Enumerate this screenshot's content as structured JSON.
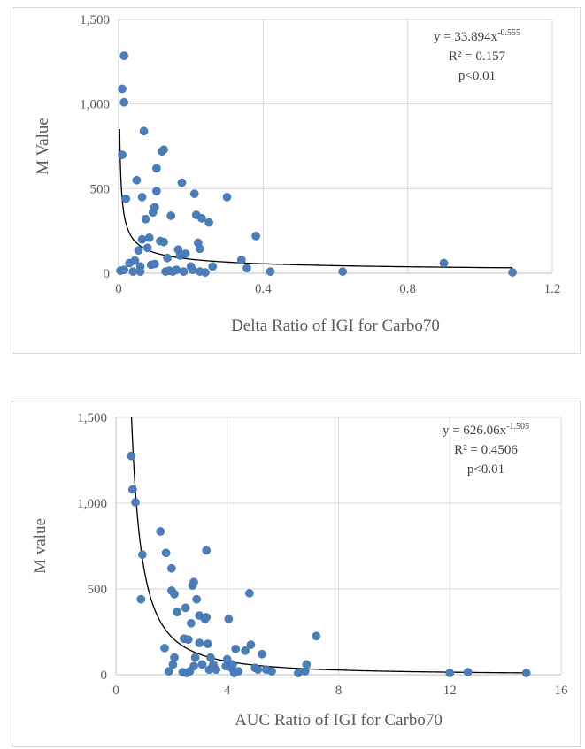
{
  "chart_data": [
    {
      "type": "scatter",
      "xlabel": "Delta Ratio of IGI for Carbo70",
      "ylabel": "M Value",
      "xlim": [
        0,
        1.2
      ],
      "ylim": [
        0,
        1500
      ],
      "xticks": [
        "0",
        "0.4",
        "0.8",
        "1.2"
      ],
      "xtick_values": [
        0,
        0.4,
        0.8,
        1.2
      ],
      "yticks": [
        "0",
        "500",
        "1,000",
        "1,500"
      ],
      "ytick_values": [
        0,
        500,
        1000,
        1500
      ],
      "grid": true,
      "equation": {
        "base": "y = 33.894x",
        "exponent": "-0.555",
        "r2": "R² = 0.157",
        "p": "p<0.01"
      },
      "trendline": {
        "type": "power",
        "a": 33.894,
        "b": -0.555
      },
      "points": [
        [
          0.01,
          700
        ],
        [
          0.01,
          1090
        ],
        [
          0.015,
          1285
        ],
        [
          0.015,
          1010
        ],
        [
          0.02,
          440
        ],
        [
          0.005,
          15
        ],
        [
          0.015,
          20
        ],
        [
          0.03,
          60
        ],
        [
          0.04,
          10
        ],
        [
          0.045,
          75
        ],
        [
          0.05,
          550
        ],
        [
          0.055,
          135
        ],
        [
          0.06,
          40
        ],
        [
          0.06,
          10
        ],
        [
          0.065,
          200
        ],
        [
          0.065,
          450
        ],
        [
          0.07,
          840
        ],
        [
          0.075,
          320
        ],
        [
          0.08,
          150
        ],
        [
          0.085,
          210
        ],
        [
          0.09,
          50
        ],
        [
          0.095,
          360
        ],
        [
          0.1,
          390
        ],
        [
          0.1,
          55
        ],
        [
          0.105,
          485
        ],
        [
          0.105,
          620
        ],
        [
          0.115,
          190
        ],
        [
          0.12,
          720
        ],
        [
          0.125,
          730
        ],
        [
          0.125,
          185
        ],
        [
          0.13,
          10
        ],
        [
          0.135,
          90
        ],
        [
          0.14,
          15
        ],
        [
          0.145,
          340
        ],
        [
          0.15,
          10
        ],
        [
          0.16,
          20
        ],
        [
          0.165,
          140
        ],
        [
          0.17,
          105
        ],
        [
          0.175,
          535
        ],
        [
          0.18,
          10
        ],
        [
          0.185,
          115
        ],
        [
          0.2,
          40
        ],
        [
          0.205,
          20
        ],
        [
          0.21,
          470
        ],
        [
          0.215,
          345
        ],
        [
          0.22,
          180
        ],
        [
          0.225,
          145
        ],
        [
          0.225,
          10
        ],
        [
          0.23,
          325
        ],
        [
          0.24,
          5
        ],
        [
          0.25,
          300
        ],
        [
          0.26,
          40
        ],
        [
          0.3,
          450
        ],
        [
          0.34,
          80
        ],
        [
          0.355,
          30
        ],
        [
          0.38,
          220
        ],
        [
          0.42,
          10
        ],
        [
          0.62,
          10
        ],
        [
          0.9,
          60
        ],
        [
          1.09,
          5
        ]
      ]
    },
    {
      "type": "scatter",
      "xlabel": "AUC Ratio of IGI for Carbo70",
      "ylabel": "M value",
      "xlim": [
        0,
        16
      ],
      "ylim": [
        0,
        1500
      ],
      "xticks": [
        "0",
        "4",
        "8",
        "12",
        "16"
      ],
      "xtick_values": [
        0,
        4,
        8,
        12,
        16
      ],
      "yticks": [
        "0",
        "500",
        "1,000",
        "1,500"
      ],
      "ytick_values": [
        0,
        500,
        1000,
        1500
      ],
      "grid": true,
      "equation": {
        "base": "y = 626.06x",
        "exponent": "-1.505",
        "r2": "R² = 0.4506",
        "p": "p<0.01"
      },
      "trendline": {
        "type": "power",
        "a": 626.06,
        "b": -1.505
      },
      "points": [
        [
          0.55,
          1275
        ],
        [
          0.6,
          1080
        ],
        [
          0.7,
          1005
        ],
        [
          0.9,
          440
        ],
        [
          0.95,
          700
        ],
        [
          1.6,
          835
        ],
        [
          1.75,
          155
        ],
        [
          1.8,
          710
        ],
        [
          1.9,
          20
        ],
        [
          2.0,
          620
        ],
        [
          2.0,
          490
        ],
        [
          2.05,
          60
        ],
        [
          2.1,
          100
        ],
        [
          2.1,
          470
        ],
        [
          2.2,
          365
        ],
        [
          2.4,
          15
        ],
        [
          2.45,
          210
        ],
        [
          2.5,
          390
        ],
        [
          2.55,
          10
        ],
        [
          2.6,
          205
        ],
        [
          2.65,
          20
        ],
        [
          2.7,
          300
        ],
        [
          2.75,
          520
        ],
        [
          2.8,
          540
        ],
        [
          2.8,
          50
        ],
        [
          2.85,
          100
        ],
        [
          2.9,
          440
        ],
        [
          3.0,
          345
        ],
        [
          3.0,
          185
        ],
        [
          3.1,
          60
        ],
        [
          3.2,
          325
        ],
        [
          3.25,
          725
        ],
        [
          3.25,
          335
        ],
        [
          3.3,
          180
        ],
        [
          3.35,
          30
        ],
        [
          3.4,
          100
        ],
        [
          3.5,
          60
        ],
        [
          3.6,
          30
        ],
        [
          3.95,
          50
        ],
        [
          4.0,
          90
        ],
        [
          4.05,
          325
        ],
        [
          4.15,
          40
        ],
        [
          4.2,
          60
        ],
        [
          4.25,
          10
        ],
        [
          4.3,
          150
        ],
        [
          4.4,
          20
        ],
        [
          4.65,
          140
        ],
        [
          4.8,
          475
        ],
        [
          4.85,
          175
        ],
        [
          5.0,
          40
        ],
        [
          5.1,
          30
        ],
        [
          5.25,
          120
        ],
        [
          5.4,
          30
        ],
        [
          5.6,
          20
        ],
        [
          6.55,
          10
        ],
        [
          6.8,
          20
        ],
        [
          6.85,
          60
        ],
        [
          7.2,
          225
        ],
        [
          12.0,
          10
        ],
        [
          12.65,
          15
        ],
        [
          14.75,
          10
        ]
      ]
    }
  ]
}
